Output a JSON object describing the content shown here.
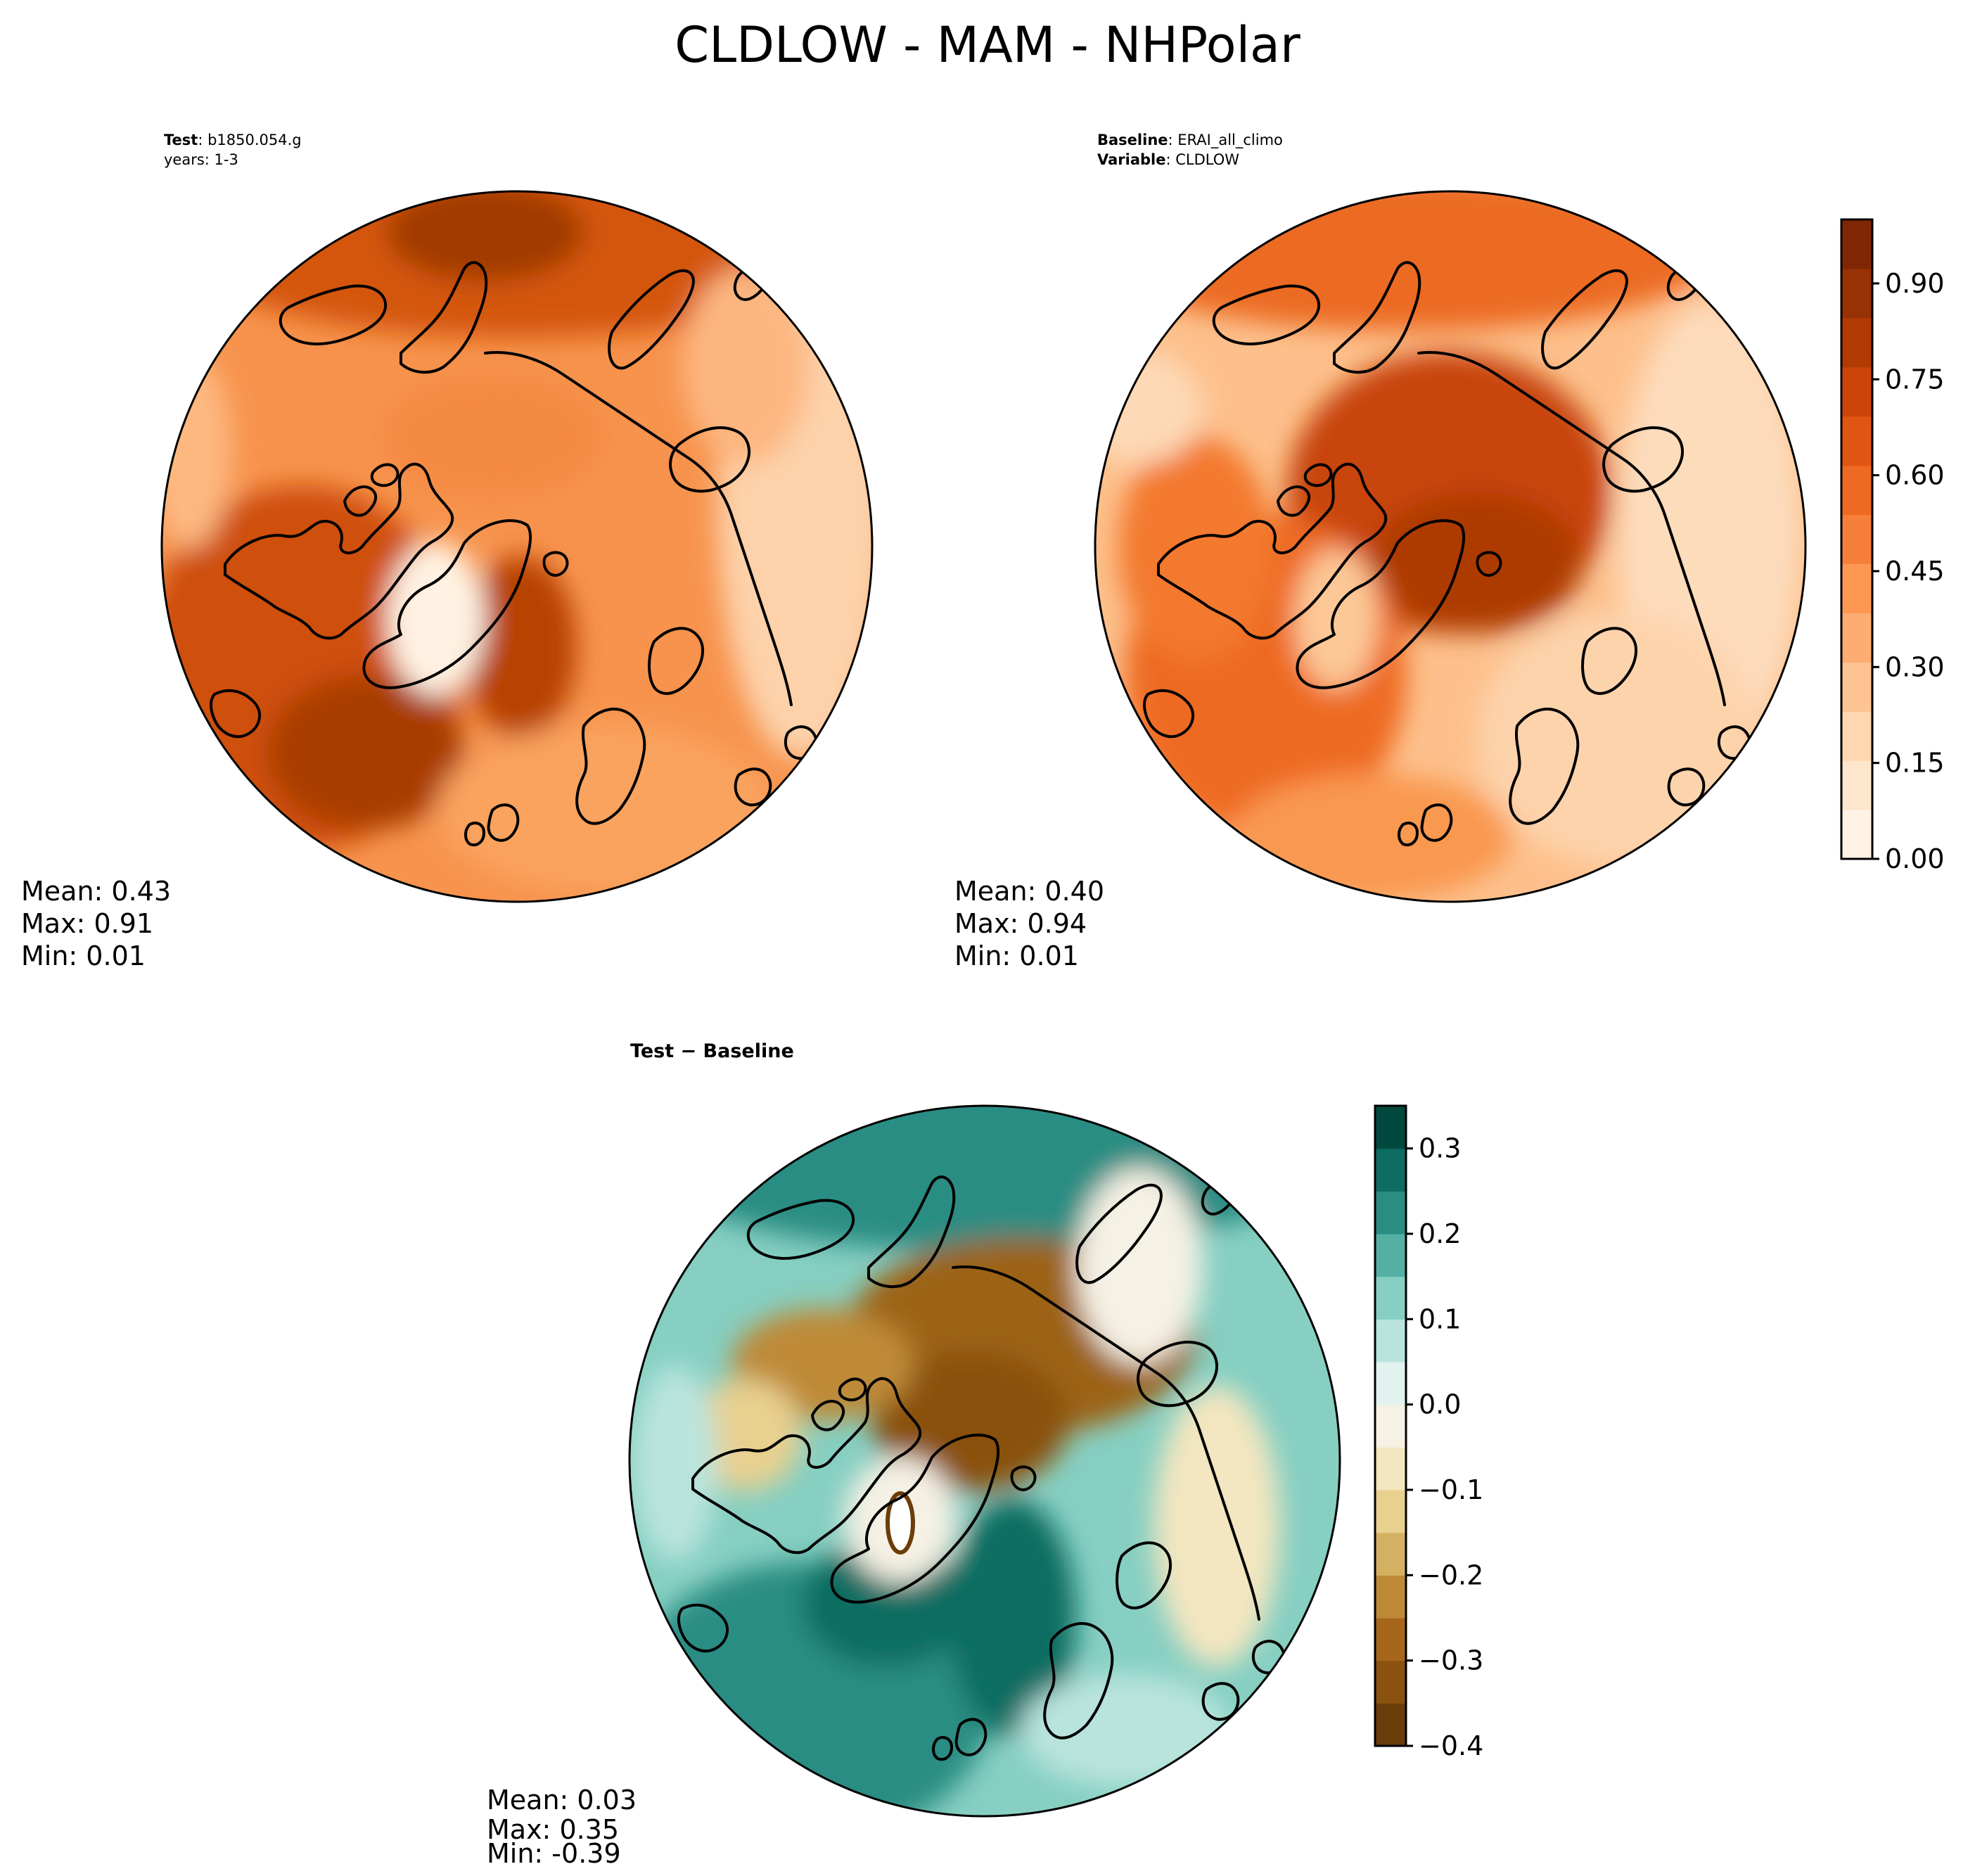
{
  "title": "CLDLOW - MAM - NHPolar",
  "panels": {
    "test": {
      "label_bold": "Test",
      "label_text": ": b1850.054.g",
      "label_line2": "years: 1-3",
      "mean": "Mean:  0.43",
      "max": "Max:  0.91",
      "min": "Min:  0.01"
    },
    "baseline": {
      "label_bold": "Baseline",
      "label_text": ": ERAI_all_climo",
      "label_bold2": "Variable",
      "label_text2": ": CLDLOW",
      "mean": "Mean:  0.40",
      "max": "Max:  0.94",
      "min": "Min:  0.01"
    },
    "diff": {
      "label": "Test − Baseline",
      "mean": "Mean:  0.03",
      "max": "Max:  0.35",
      "min": "Min: -0.39"
    }
  },
  "colorbars": {
    "main": {
      "colormap": "Oranges",
      "ticks": [
        "0.00",
        "0.15",
        "0.30",
        "0.45",
        "0.60",
        "0.75",
        "0.90"
      ],
      "range": [
        0,
        1.0
      ],
      "colors": [
        "#fff3e6",
        "#fee6cd",
        "#fdd7b0",
        "#fdc392",
        "#fdad72",
        "#fd9752",
        "#f6803a",
        "#ee6a22",
        "#e05511",
        "#cc4408",
        "#b23a03",
        "#983103",
        "#7f2704"
      ]
    },
    "diff": {
      "colormap": "BrBG",
      "ticks": [
        "0.3",
        "0.2",
        "0.1",
        "0.0",
        "−0.1",
        "−0.2",
        "−0.3",
        "−0.4"
      ],
      "range": [
        -0.4,
        0.35
      ],
      "colors": [
        "#693d0a",
        "#8a510f",
        "#a6661c",
        "#be8a38",
        "#d4b062",
        "#e8d08f",
        "#f3e6c0",
        "#f5f1e4",
        "#e2f2ef",
        "#b9e4dd",
        "#86cfc2",
        "#55b0a4",
        "#2a8d83",
        "#0d6d62",
        "#01493f"
      ]
    }
  },
  "chart_data": [
    {
      "type": "heatmap",
      "name": "test",
      "variable": "CLDLOW",
      "season": "MAM",
      "region": "NHPolar",
      "mean": 0.43,
      "max": 0.91,
      "min": 0.01,
      "colorbar_range": [
        0.0,
        1.0
      ]
    },
    {
      "type": "heatmap",
      "name": "baseline",
      "variable": "CLDLOW",
      "mean": 0.4,
      "max": 0.94,
      "min": 0.01,
      "colorbar_range": [
        0.0,
        1.0
      ]
    },
    {
      "type": "heatmap",
      "name": "test-baseline",
      "mean": 0.03,
      "max": 0.35,
      "min": -0.39,
      "colorbar_range": [
        -0.4,
        0.35
      ]
    }
  ]
}
